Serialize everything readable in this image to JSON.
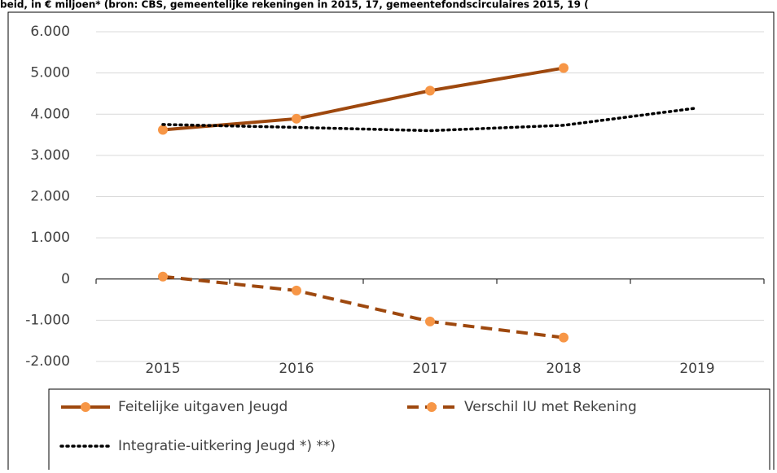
{
  "chart_data": {
    "type": "line",
    "title": "beid, in € miljoen* (bron: CBS, gemeentelijke rekeningen in 2015, 17, gemeentefondscirculaires 2015, 19 (",
    "categories": [
      "2015",
      "2016",
      "2017",
      "2018",
      "2019"
    ],
    "series": [
      {
        "name": "Feitelijke uitgaven Jeugd",
        "color": "#9e480e",
        "marker_color": "#f79646",
        "dash": "solid",
        "values": [
          3620,
          3890,
          4570,
          5120,
          null
        ]
      },
      {
        "name": "Verschil IU met Rekening",
        "color": "#9e480e",
        "marker_color": "#f79646",
        "dash": "dashed",
        "values": [
          60,
          -280,
          -1030,
          -1420,
          null
        ]
      },
      {
        "name": "Integratie-uitkering Jeugd *) **)",
        "color": "#000000",
        "dash": "dotted",
        "values": [
          3750,
          3680,
          3600,
          3730,
          4150
        ]
      }
    ],
    "ylim": [
      -2000,
      6000
    ],
    "yticks": [
      {
        "value": -2000,
        "label": "-2.000"
      },
      {
        "value": -1000,
        "label": "-1.000"
      },
      0,
      {
        "value": 1000,
        "label": "1.000"
      },
      {
        "value": 2000,
        "label": "2.000"
      },
      {
        "value": 3000,
        "label": "3.000"
      },
      {
        "value": 4000,
        "label": "4.000"
      },
      {
        "value": 5000,
        "label": "5.000"
      },
      {
        "value": 6000,
        "label": "6.000"
      }
    ],
    "grid": true
  }
}
